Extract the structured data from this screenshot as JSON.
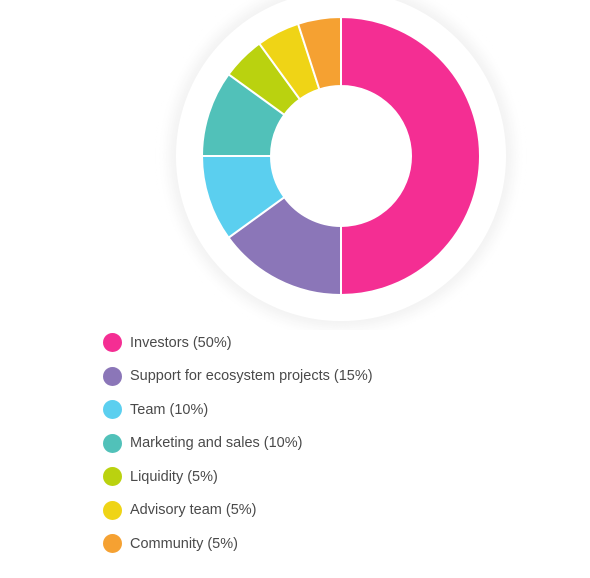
{
  "chart_data": {
    "type": "pie",
    "variant": "donut",
    "title": "",
    "slices": [
      {
        "label": "Investors (50%)",
        "value": 50,
        "color": "#F42E93"
      },
      {
        "label": "Support for ecosystem projects (15%)",
        "value": 15,
        "color": "#8B76B8"
      },
      {
        "label": "Team (10%)",
        "value": 10,
        "color": "#5BCFEF"
      },
      {
        "label": "Marketing and sales (10%)",
        "value": 10,
        "color": "#51C1B9"
      },
      {
        "label": "Liquidity (5%)",
        "value": 5,
        "color": "#BAD20F"
      },
      {
        "label": "Advisory team (5%)",
        "value": 5,
        "color": "#EFD416"
      },
      {
        "label": "Community (5%)",
        "value": 5,
        "color": "#F5A132"
      }
    ],
    "legend_placement": "bottom-left",
    "start_angle": "top",
    "direction": "clockwise"
  }
}
